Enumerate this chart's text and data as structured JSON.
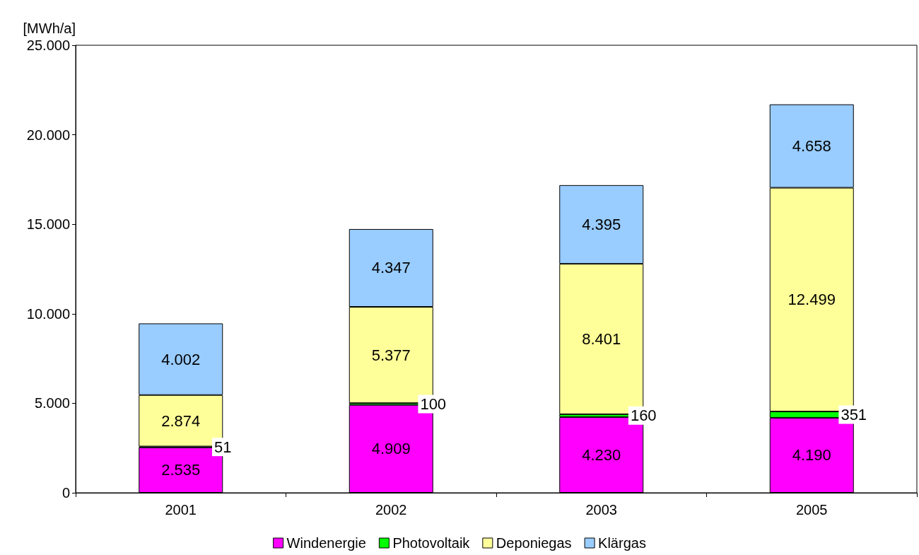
{
  "chart_data": {
    "type": "bar",
    "stacked": true,
    "ylabel": "[MWh/a]",
    "categories": [
      "2001",
      "2002",
      "2003",
      "2005"
    ],
    "series": [
      {
        "name": "Windenergie",
        "color": "#ff00ff",
        "values": [
          2535,
          4909,
          4230,
          4190
        ],
        "value_labels": [
          "2.535",
          "4.909",
          "4.230",
          "4.190"
        ]
      },
      {
        "name": "Photovoltaik",
        "color": "#00ff00",
        "values": [
          51,
          100,
          160,
          351
        ],
        "value_labels": [
          "51",
          "100",
          "160",
          "351"
        ]
      },
      {
        "name": "Deponiegas",
        "color": "#ffff99",
        "values": [
          2874,
          5377,
          8401,
          12499
        ],
        "value_labels": [
          "2.874",
          "5.377",
          "8.401",
          "12.499"
        ]
      },
      {
        "name": "Klärgas",
        "color": "#99ccff",
        "values": [
          4002,
          4347,
          4395,
          4658
        ],
        "value_labels": [
          "4.002",
          "4.347",
          "4.395",
          "4.658"
        ]
      }
    ],
    "ylim": [
      0,
      25000
    ],
    "yticks": [
      0,
      {
        "value": 5000,
        "label": "5.000"
      },
      {
        "value": 10000,
        "label": "10.000"
      },
      {
        "value": 15000,
        "label": "15.000"
      },
      {
        "value": 20000,
        "label": "20.000"
      },
      {
        "value": 25000,
        "label": "25.000"
      }
    ],
    "grid": false,
    "legend": "bottom"
  }
}
